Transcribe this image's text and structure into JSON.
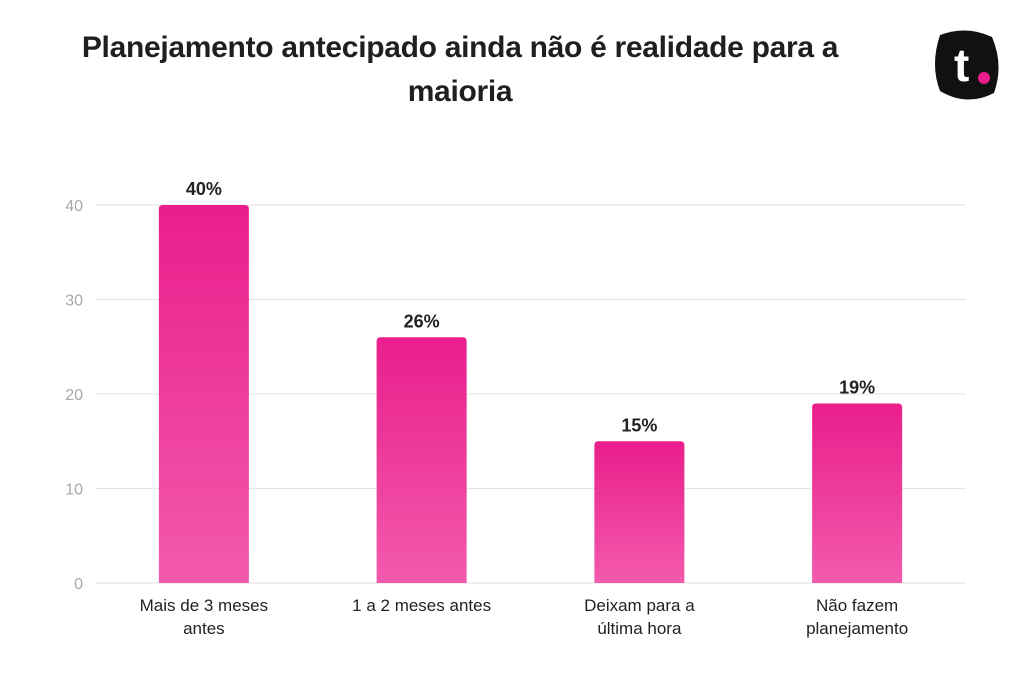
{
  "header": {
    "title": "Planejamento antecipado ainda não é realidade para a maioria",
    "logo_text": "t"
  },
  "colors": {
    "bar_top": "#e91e8c",
    "bar_bottom": "#f25aad",
    "logo_bg": "#111111",
    "logo_dot": "#e91e8c",
    "grid": "#e6e6e6"
  },
  "chart_data": {
    "type": "bar",
    "title": "Planejamento antecipado ainda não é realidade para a maioria",
    "categories": [
      [
        "Mais de 3 meses",
        "antes"
      ],
      [
        "1 a 2 meses antes"
      ],
      [
        "Deixam para a",
        "última hora"
      ],
      [
        "Não fazem",
        "planejamento"
      ]
    ],
    "values": [
      40,
      26,
      15,
      19
    ],
    "value_labels": [
      "40%",
      "26%",
      "15%",
      "19%"
    ],
    "yticks": [
      0,
      10,
      20,
      30,
      40
    ],
    "ylim": [
      0,
      40
    ],
    "grid": true,
    "legend": "none"
  }
}
